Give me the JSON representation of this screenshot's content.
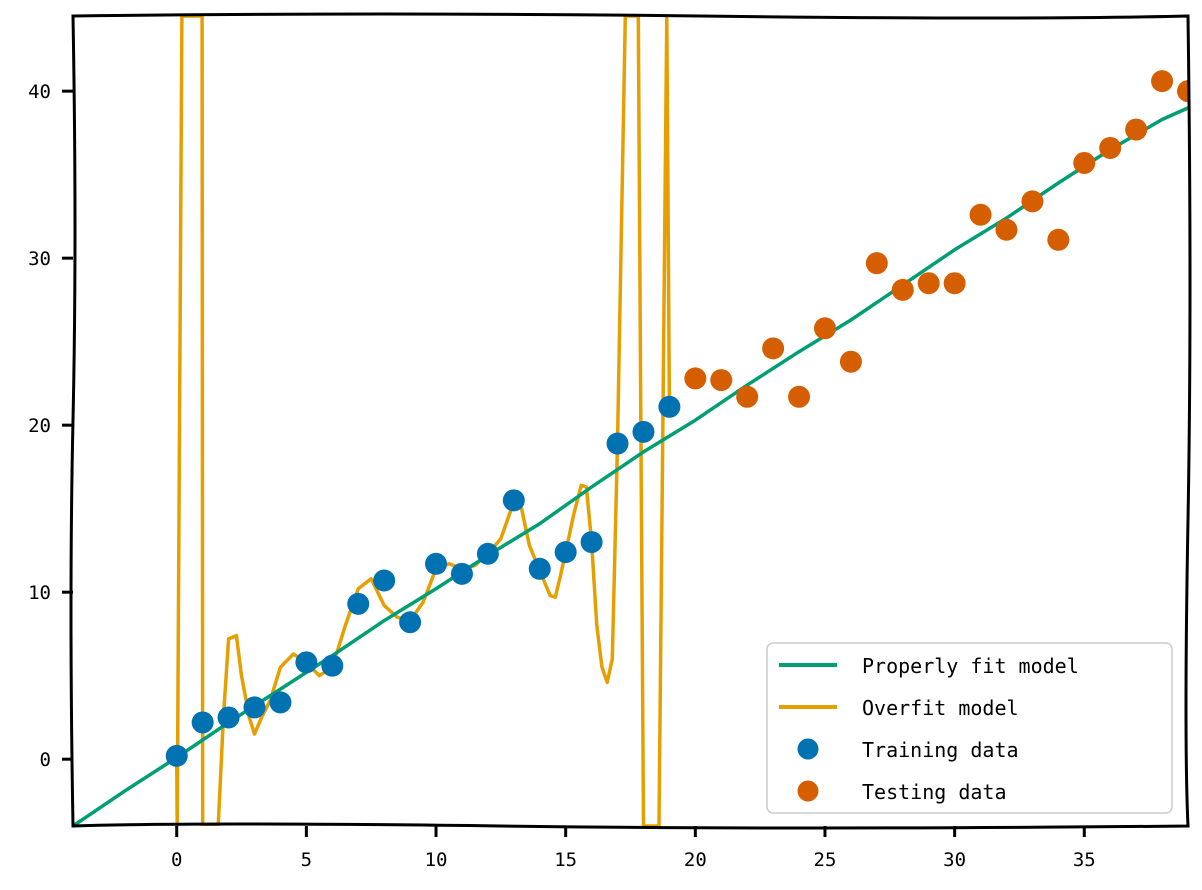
{
  "chart_data": {
    "type": "scatter",
    "xlim": [
      -4,
      39
    ],
    "ylim": [
      -4,
      44.5
    ],
    "x_ticks": [
      0,
      5,
      10,
      15,
      20,
      25,
      30,
      35
    ],
    "y_ticks": [
      0,
      10,
      20,
      30,
      40
    ],
    "grid": false,
    "legend_position": "bottom-right",
    "colors": {
      "fit": "#009e73",
      "overfit": "#e69f00",
      "train": "#0072b2",
      "test": "#d55e00"
    },
    "series": [
      {
        "name": "Properly fit model",
        "kind": "line",
        "x": [
          -4,
          -2,
          0,
          2,
          4,
          6,
          8,
          10,
          12,
          14,
          16,
          18,
          20,
          22,
          24,
          26,
          28,
          30,
          32,
          34,
          36,
          38,
          39
        ],
        "y": [
          -4,
          -1.9,
          0.1,
          2.2,
          4.2,
          6.2,
          8.3,
          10.2,
          12.2,
          14.1,
          16.3,
          18.4,
          20.3,
          22.4,
          24.4,
          26.3,
          28.4,
          30.5,
          32.4,
          34.5,
          36.5,
          38.3,
          39
        ]
      },
      {
        "name": "Overfit model",
        "kind": "line",
        "x": [
          0,
          0.02,
          0.2,
          0.5,
          0.8,
          0.98,
          1.0,
          1.6,
          1.8,
          2.0,
          2.3,
          2.5,
          2.8,
          3.0,
          3.3,
          3.6,
          4.0,
          4.5,
          5.0,
          5.5,
          6.0,
          6.5,
          7.0,
          7.5,
          8.0,
          8.5,
          9.0,
          9.5,
          10.0,
          10.5,
          11.0,
          11.5,
          12.0,
          12.5,
          13.0,
          13.3,
          13.6,
          14.0,
          14.4,
          14.6,
          14.8,
          15.0,
          15.3,
          15.6,
          15.8,
          16.0,
          16.2,
          16.4,
          16.6,
          16.8,
          17.0,
          17.3,
          17.6,
          17.8,
          17.9,
          18.0,
          18.3,
          18.6,
          18.9,
          19.0
        ],
        "y": [
          0,
          -4,
          44.5,
          44.5,
          44.5,
          44.5,
          -4,
          -4,
          2.5,
          7.2,
          7.4,
          5,
          2.5,
          1.5,
          2.6,
          3.5,
          5.5,
          6.3,
          5.8,
          5,
          5.5,
          8,
          10.2,
          10.8,
          9.2,
          8.5,
          8.3,
          9.4,
          11.4,
          11.7,
          11.4,
          11.6,
          12.3,
          13.2,
          15.4,
          15.0,
          12.8,
          11.3,
          9.8,
          9.7,
          11.0,
          12.4,
          14.6,
          16.4,
          16.3,
          13.0,
          8.0,
          5.5,
          4.6,
          6.0,
          18.9,
          44.5,
          44.5,
          44.5,
          19.6,
          -4,
          -4,
          -4,
          44.5,
          21.1
        ]
      },
      {
        "name": "Training data",
        "kind": "scatter",
        "x": [
          0,
          1,
          2,
          3,
          4,
          5,
          6,
          7,
          8,
          9,
          10,
          11,
          12,
          13,
          14,
          15,
          16,
          17,
          18,
          19
        ],
        "y": [
          0.2,
          2.2,
          2.5,
          3.1,
          3.4,
          5.8,
          5.6,
          9.3,
          10.7,
          8.2,
          11.7,
          11.1,
          12.3,
          15.5,
          11.4,
          12.4,
          13.0,
          18.9,
          19.6,
          21.1
        ]
      },
      {
        "name": "Testing data",
        "kind": "scatter",
        "x": [
          20,
          21,
          22,
          23,
          24,
          25,
          26,
          27,
          28,
          29,
          30,
          31,
          32,
          33,
          34,
          35,
          36,
          37,
          38,
          39
        ],
        "y": [
          22.8,
          22.7,
          21.7,
          24.6,
          21.7,
          25.8,
          23.8,
          29.7,
          28.1,
          28.5,
          28.5,
          32.6,
          31.7,
          33.4,
          31.1,
          35.7,
          36.6,
          37.7,
          40.6,
          40.0
        ]
      }
    ]
  }
}
